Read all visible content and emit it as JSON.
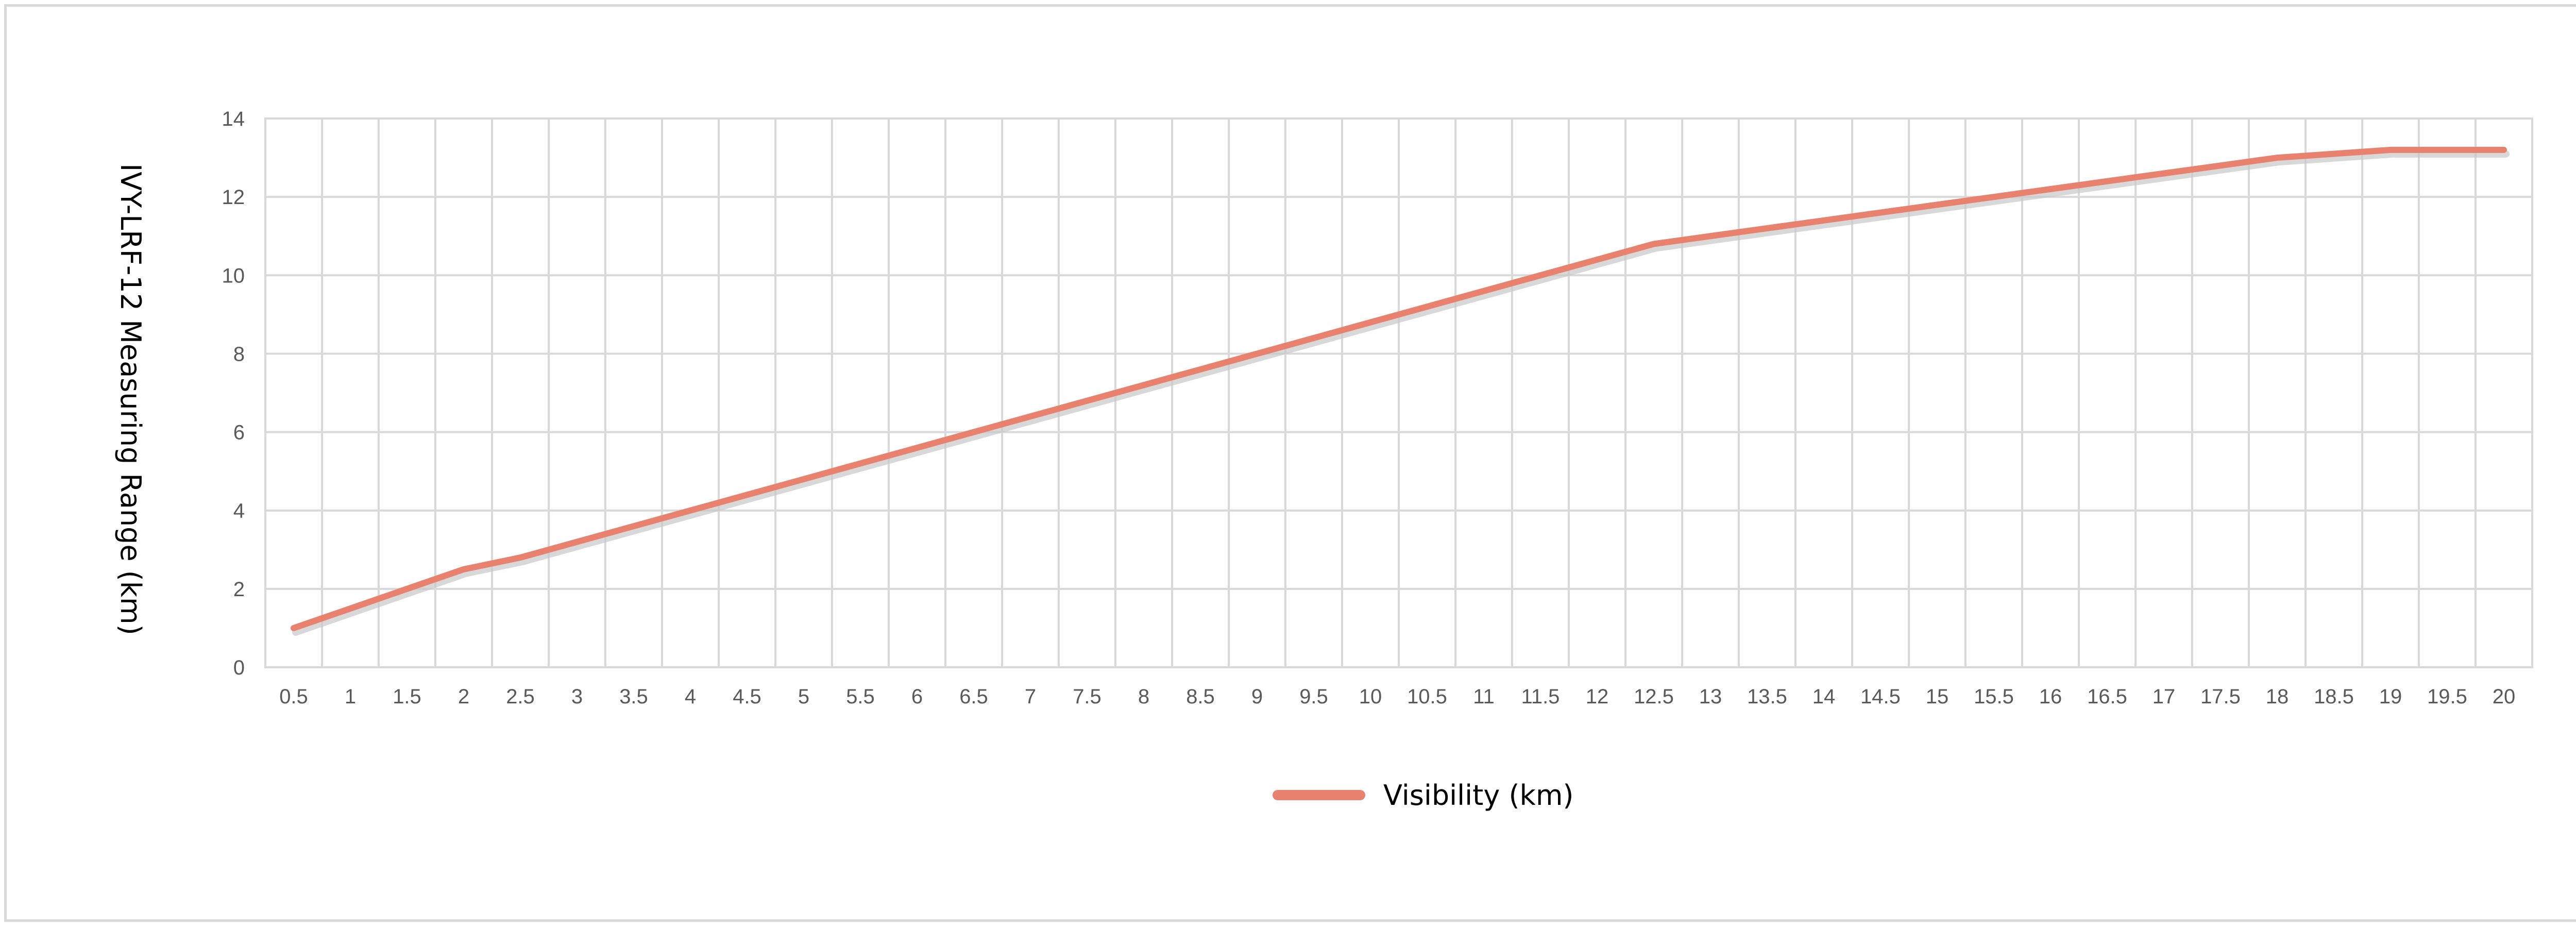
{
  "chart_data": {
    "type": "line",
    "ylabel": "IVY-LRF-12 Measuring Range (km)",
    "xlabel": "",
    "title": "",
    "x": [
      "0.5",
      "1",
      "1.5",
      "2",
      "2.5",
      "3",
      "3.5",
      "4",
      "4.5",
      "5",
      "5.5",
      "6",
      "6.5",
      "7",
      "7.5",
      "8",
      "8.5",
      "9",
      "9.5",
      "10",
      "10.5",
      "11",
      "11.5",
      "12",
      "12.5",
      "13",
      "13.5",
      "14",
      "14.5",
      "15",
      "15.5",
      "16",
      "16.5",
      "17",
      "17.5",
      "18",
      "18.5",
      "19",
      "19.5",
      "20"
    ],
    "series": [
      {
        "name": "Visibility (km)",
        "color": "#e8826e",
        "values": [
          1.0,
          1.5,
          2.0,
          2.5,
          2.8,
          3.2,
          3.6,
          4.0,
          4.4,
          4.8,
          5.2,
          5.6,
          6.0,
          6.4,
          6.8,
          7.2,
          7.6,
          8.0,
          8.4,
          8.8,
          9.2,
          9.6,
          10.0,
          10.4,
          10.8,
          11.0,
          11.2,
          11.4,
          11.6,
          11.8,
          12.0,
          12.2,
          12.4,
          12.6,
          12.8,
          13.0,
          13.1,
          13.2,
          13.2,
          13.2
        ]
      }
    ],
    "yticks": [
      "0",
      "2",
      "4",
      "6",
      "8",
      "10",
      "12",
      "14"
    ],
    "ylim": [
      0,
      14
    ],
    "grid": true,
    "legend_position": "bottom-center"
  }
}
